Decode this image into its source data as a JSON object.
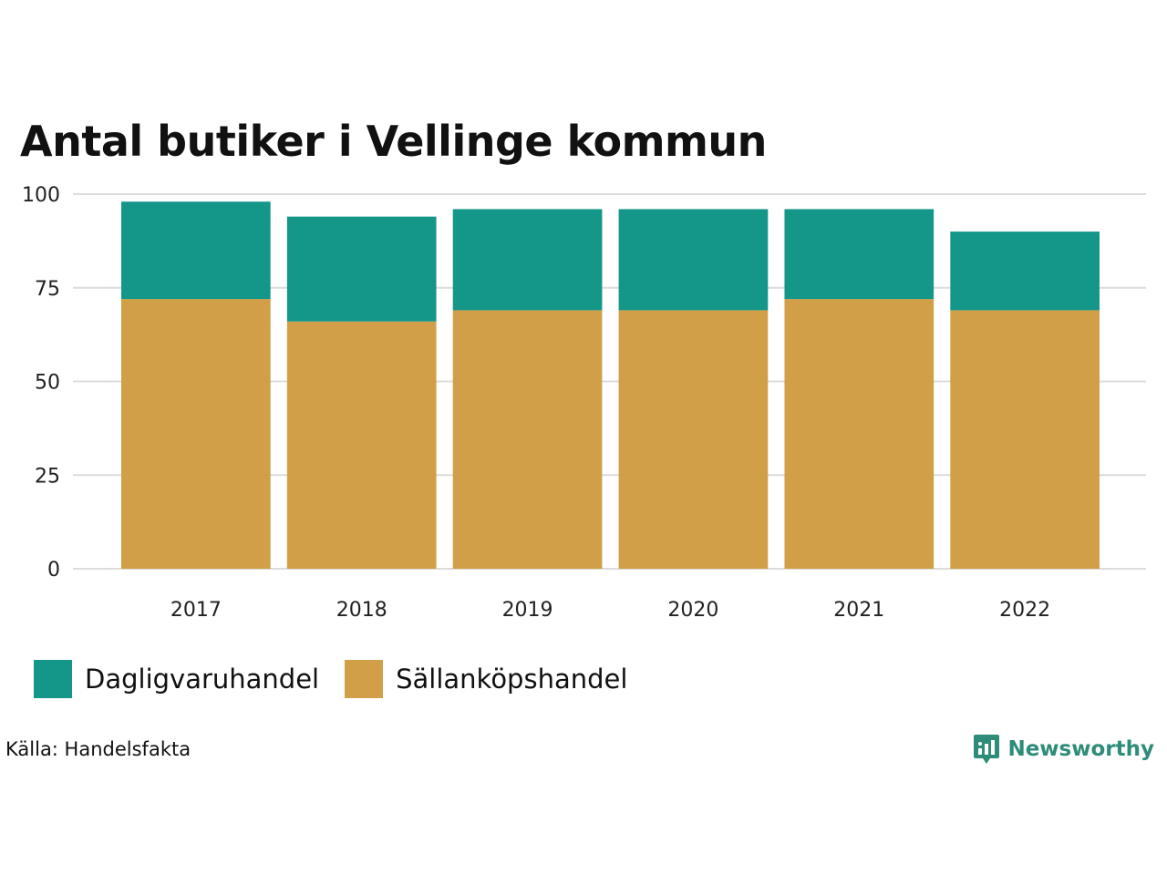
{
  "chart_data": {
    "type": "bar",
    "stacked": true,
    "title": "Antal butiker i Vellinge kommun",
    "xlabel": "",
    "ylabel": "",
    "categories": [
      "2017",
      "2018",
      "2019",
      "2020",
      "2021",
      "2022"
    ],
    "series": [
      {
        "name": "Sällanköpshandel",
        "color": "#D09F47",
        "values": [
          72,
          66,
          69,
          69,
          72,
          69
        ]
      },
      {
        "name": "Dagligvaruhandel",
        "color": "#149688",
        "values": [
          26,
          28,
          27,
          27,
          24,
          21
        ]
      }
    ],
    "ylim": [
      0,
      100
    ],
    "yticks": [
      0,
      25,
      50,
      75,
      100
    ],
    "grid": true,
    "legend_position": "bottom-left"
  },
  "legend": {
    "items": [
      {
        "label": "Dagligvaruhandel",
        "color": "#149688"
      },
      {
        "label": "Sällanköpshandel",
        "color": "#D09F47"
      }
    ]
  },
  "source": "Källa: Handelsfakta",
  "brand": {
    "name": "Newsworthy",
    "color": "#2E8C79",
    "icon": "newsworthy-logo-icon"
  }
}
